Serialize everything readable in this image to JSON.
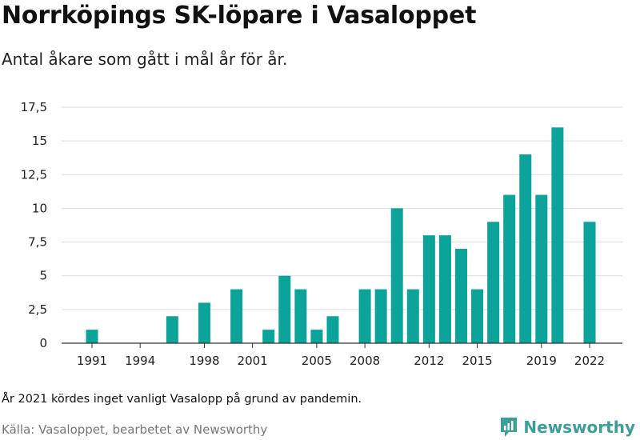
{
  "title": "Norrköpings SK-löpare i Vasaloppet",
  "subtitle": "Antal åkare som gått i mål år för år.",
  "note": "År 2021 kördes inget vanligt Vasalopp på grund av pandemin.",
  "source": "Källa: Vasaloppet, bearbetet av Newsworthy",
  "brand": {
    "name": "Newsworthy",
    "icon": "newsworthy-logo-icon"
  },
  "colors": {
    "bar": "#0ca39a",
    "grid": "#dddddd",
    "axis": "#333333"
  },
  "chart_data": {
    "type": "bar",
    "x": [
      1991,
      1992,
      1993,
      1994,
      1995,
      1996,
      1997,
      1998,
      1999,
      2000,
      2001,
      2002,
      2003,
      2004,
      2005,
      2006,
      2007,
      2008,
      2009,
      2010,
      2011,
      2012,
      2013,
      2014,
      2015,
      2016,
      2017,
      2018,
      2019,
      2020,
      2021,
      2022
    ],
    "values": [
      1,
      0,
      0,
      0,
      0,
      2,
      0,
      3,
      0,
      4,
      0,
      1,
      5,
      4,
      1,
      2,
      0,
      4,
      4,
      10,
      4,
      8,
      8,
      7,
      4,
      9,
      11,
      14,
      11,
      16,
      0,
      9
    ],
    "x_ticks": [
      "1991",
      "1994",
      "1998",
      "2001",
      "2005",
      "2008",
      "2012",
      "2015",
      "2019",
      "2022"
    ],
    "y_ticks": [
      "0",
      "2,5",
      "5",
      "7,5",
      "10",
      "12,5",
      "15",
      "17,5"
    ],
    "ylim": [
      0,
      17.5
    ],
    "grid": true,
    "xlabel": "",
    "ylabel": ""
  }
}
